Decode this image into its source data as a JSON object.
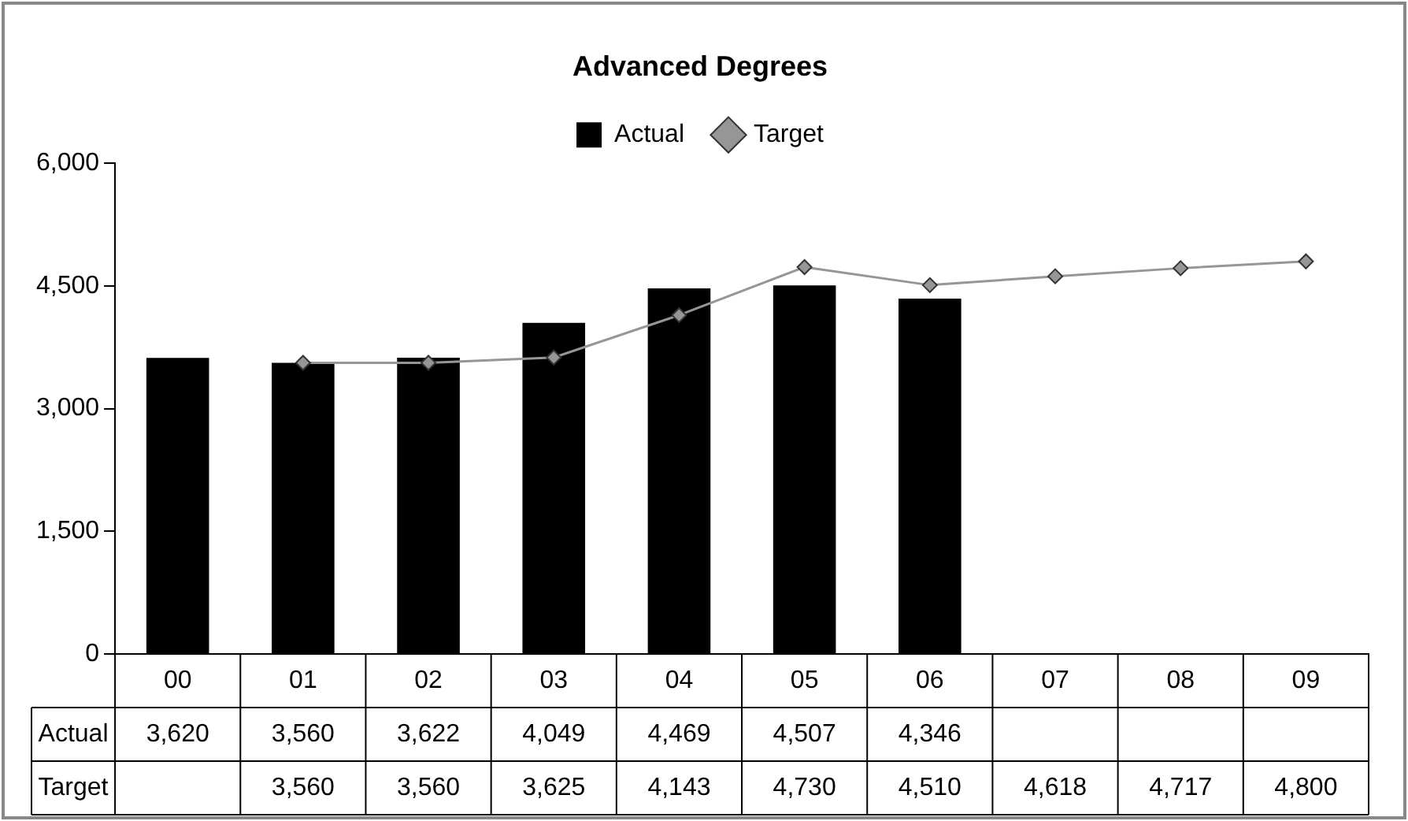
{
  "chart_data": {
    "type": "bar",
    "title": "Advanced Degrees",
    "categories": [
      "00",
      "01",
      "02",
      "03",
      "04",
      "05",
      "06",
      "07",
      "08",
      "09"
    ],
    "series": [
      {
        "name": "Actual",
        "color": "#000000",
        "values": [
          3620,
          3560,
          3622,
          4049,
          4469,
          4507,
          4346,
          null,
          null,
          null
        ],
        "value_labels": [
          "3,620",
          "3,560",
          "3,622",
          "4,049",
          "4,469",
          "4,507",
          "4,346",
          null,
          null,
          null
        ]
      },
      {
        "name": "Target",
        "type": "line",
        "color": "#969696",
        "marker": "diamond",
        "values": [
          null,
          3560,
          3560,
          3625,
          4143,
          4730,
          4510,
          4618,
          4717,
          4800
        ],
        "value_labels": [
          null,
          "3,560",
          "3,560",
          "3,625",
          "4,143",
          "4,730",
          "4,510",
          "4,618",
          "4,717",
          "4,800"
        ]
      }
    ],
    "ylim": [
      0,
      6000
    ],
    "yticks": [
      0,
      {
        "value": 1500,
        "label": "1,500"
      },
      {
        "value": 3000,
        "label": "3,000"
      },
      {
        "value": 4500,
        "label": "4,500"
      },
      {
        "value": 6000,
        "label": "6,000"
      }
    ],
    "grid": false,
    "legend": "top"
  }
}
